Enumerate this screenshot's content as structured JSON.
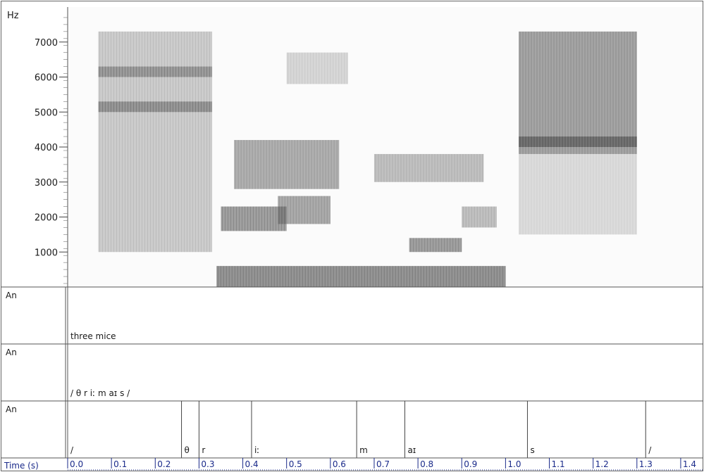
{
  "chart_data": {
    "type": "heatmap",
    "y_axis_label": "Hz",
    "y_ticks": [
      1000,
      2000,
      3000,
      4000,
      5000,
      6000,
      7000
    ],
    "ylim": [
      0,
      8000
    ],
    "x_axis_label": "Time (s)",
    "x_ticks": [
      "0.0",
      "0.1",
      "0.2",
      "0.3",
      "0.4",
      "0.5",
      "0.6",
      "0.7",
      "0.8",
      "0.9",
      "1.0",
      "1.1",
      "1.2",
      "1.3",
      "1.4"
    ],
    "xlim": [
      0,
      1.45
    ],
    "energy_regions": [
      {
        "t0": 0.07,
        "t1": 0.33,
        "f0": 1000,
        "f1": 7300,
        "level": 0.45
      },
      {
        "t0": 0.07,
        "t1": 0.33,
        "f0": 5000,
        "f1": 5300,
        "level": 0.75
      },
      {
        "t0": 0.07,
        "t1": 0.33,
        "f0": 6000,
        "f1": 6300,
        "level": 0.7
      },
      {
        "t0": 0.35,
        "t1": 0.5,
        "f0": 1600,
        "f1": 2300,
        "level": 0.85
      },
      {
        "t0": 0.38,
        "t1": 0.62,
        "f0": 2800,
        "f1": 4200,
        "level": 0.7
      },
      {
        "t0": 0.48,
        "t1": 0.6,
        "f0": 1800,
        "f1": 2600,
        "level": 0.75
      },
      {
        "t0": 0.5,
        "t1": 0.64,
        "f0": 5800,
        "f1": 6700,
        "level": 0.35
      },
      {
        "t0": 0.7,
        "t1": 0.95,
        "f0": 3000,
        "f1": 3800,
        "level": 0.55
      },
      {
        "t0": 0.78,
        "t1": 0.9,
        "f0": 1000,
        "f1": 1400,
        "level": 0.85
      },
      {
        "t0": 0.9,
        "t1": 0.98,
        "f0": 1700,
        "f1": 2300,
        "level": 0.55
      },
      {
        "t0": 0.34,
        "t1": 1.0,
        "f0": 0,
        "f1": 600,
        "level": 0.95
      },
      {
        "t0": 1.03,
        "t1": 1.3,
        "f0": 3800,
        "f1": 7300,
        "level": 0.8
      },
      {
        "t0": 1.03,
        "t1": 1.3,
        "f0": 4000,
        "f1": 4300,
        "level": 0.9
      },
      {
        "t0": 1.03,
        "t1": 1.3,
        "f0": 1500,
        "f1": 3800,
        "level": 0.3
      }
    ],
    "tiers": [
      {
        "name": "An",
        "intervals": [
          {
            "text": "three mice"
          }
        ]
      },
      {
        "name": "An",
        "intervals": [
          {
            "text": "/ θ r iː m aɪ s /"
          }
        ]
      },
      {
        "name": "An",
        "intervals": [
          {
            "start": 0.0,
            "end": 0.26,
            "text": "/"
          },
          {
            "start": 0.26,
            "end": 0.3,
            "text": "θ"
          },
          {
            "start": 0.3,
            "end": 0.42,
            "text": "r"
          },
          {
            "start": 0.42,
            "end": 0.66,
            "text": "iː"
          },
          {
            "start": 0.66,
            "end": 0.77,
            "text": "m"
          },
          {
            "start": 0.77,
            "end": 1.05,
            "text": "aɪ"
          },
          {
            "start": 1.05,
            "end": 1.32,
            "text": "s"
          },
          {
            "start": 1.32,
            "end": 1.45,
            "text": "/"
          }
        ]
      }
    ]
  }
}
